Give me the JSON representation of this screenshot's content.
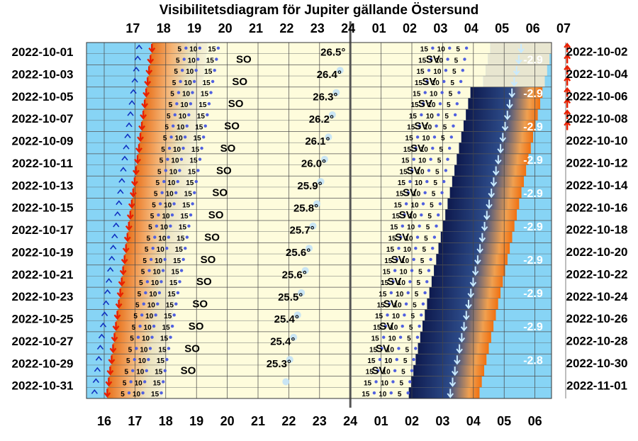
{
  "chart_data": {
    "type": "visibility-diagram",
    "title": "Visibilitetsdiagram för Jupiter gällande Östersund",
    "top_hour_labels": [
      "17",
      "18",
      "19",
      "20",
      "21",
      "22",
      "23",
      "24",
      "01",
      "02",
      "03",
      "04",
      "05",
      "06",
      "07"
    ],
    "bottom_hour_labels": [
      "16",
      "17",
      "18",
      "19",
      "20",
      "21",
      "22",
      "23",
      "24",
      "01",
      "02",
      "03",
      "04",
      "05",
      "06"
    ],
    "left_dates": [
      "2022-10-01",
      "2022-10-03",
      "2022-10-05",
      "2022-10-07",
      "2022-10-09",
      "2022-10-11",
      "2022-10-13",
      "2022-10-15",
      "2022-10-17",
      "2022-10-19",
      "2022-10-21",
      "2022-10-23",
      "2022-10-25",
      "2022-10-27",
      "2022-10-29",
      "2022-10-31"
    ],
    "right_dates": [
      "2022-10-02",
      "2022-10-04",
      "2022-10-06",
      "2022-10-08",
      "2022-10-10",
      "2022-10-12",
      "2022-10-14",
      "2022-10-16",
      "2022-10-18",
      "2022-10-20",
      "2022-10-22",
      "2022-10-24",
      "2022-10-26",
      "2022-10-28",
      "2022-10-30",
      "2022-11-01"
    ],
    "max_altitude_deg": [
      "26.5°",
      "26.4°",
      "26.3°",
      "26.2°",
      "26.1°",
      "26.0°",
      "25.9°",
      "25.8°",
      "25.7°",
      "25.6°",
      "25.6°",
      "25.5°",
      "25.4°",
      "25.4°",
      "25.3°"
    ],
    "magnitude_labels": [
      "-2.9",
      "-2.9",
      "-2.9",
      "-2.9",
      "-2.9",
      "-2.9",
      "-2.9",
      "-2.9",
      "-2.9",
      "-2.8"
    ],
    "rise_direction_label": "SO",
    "set_direction_label": "SV",
    "altitude_marks": [
      "5",
      "10",
      "15"
    ]
  },
  "colors": {
    "day_sky": "#87d4f5",
    "twilight_orange": "#f0a050",
    "night": "#fefcdc",
    "night_dark": "#0e1a4e",
    "sunset_arrow": "#e82000",
    "altitude_dots": "#5060e0",
    "moon": "#c0e0f8"
  }
}
